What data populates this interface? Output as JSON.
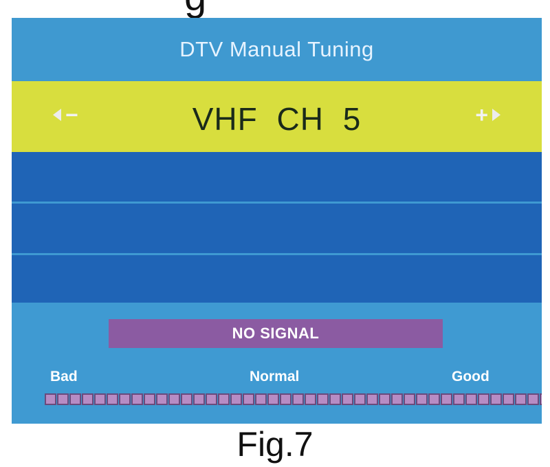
{
  "page_top_fragment": "g",
  "dialog": {
    "title": "DTV Manual Tuning",
    "channel": "VHF CH 5",
    "decrease_symbol": "−",
    "increase_symbol": "+",
    "rows": [
      "",
      "",
      ""
    ]
  },
  "signal": {
    "status": "NO SIGNAL",
    "label_bad": "Bad",
    "label_normal": "Normal",
    "label_good": "Good",
    "strength_percent": 0
  },
  "caption": "Fig.7",
  "colors": {
    "screen_bg": "#3f9ad2",
    "highlight_bar": "#d8de3e",
    "row_bg": "#1f64b6",
    "status_bg": "#8b5ba2",
    "meter_segment": "#b78cc4"
  }
}
